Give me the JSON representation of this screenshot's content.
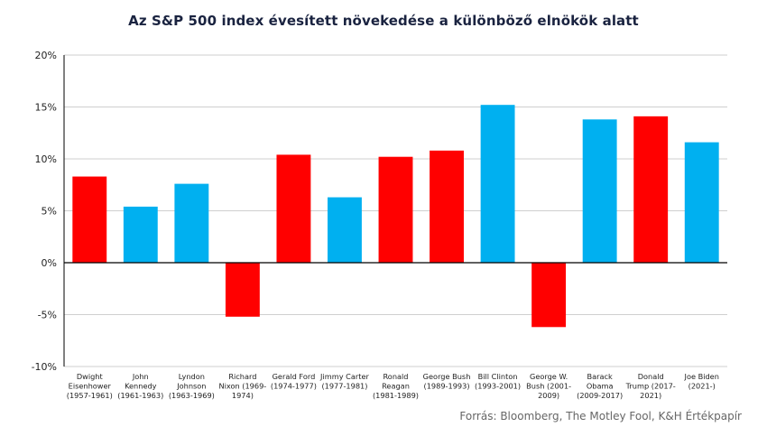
{
  "title": "Az S&P 500 index évesített növekedése a különböző elnökök alatt",
  "source": "Forrás: Bloomberg,  The Motley Fool, K&H Értékpapír",
  "colors": {
    "republican": "#ff0000",
    "democrat": "#00b0f0",
    "grid": "#cfcfcf",
    "axis": "#000000"
  },
  "chart_data": {
    "type": "bar",
    "title": "Az S&P 500 index évesített növekedése a különböző elnökök alatt",
    "xlabel": "",
    "ylabel": "",
    "ylim": [
      -10,
      20
    ],
    "yticks": [
      20,
      15,
      10,
      5,
      0,
      -5,
      -10
    ],
    "ytick_labels": [
      "20%",
      "15%",
      "10%",
      "5%",
      "0%",
      "-5%",
      "-10%"
    ],
    "grid": true,
    "legend": "none",
    "categories": [
      [
        "Dwight",
        "Eisenhower",
        "(1957-1961)"
      ],
      [
        "John",
        "Kennedy",
        "(1961-1963)"
      ],
      [
        "Lyndon",
        "Johnson",
        "(1963-1969)"
      ],
      [
        "Richard",
        "Nixon (1969-",
        "1974)"
      ],
      [
        "Gerald Ford",
        "(1974-1977)"
      ],
      [
        "Jimmy Carter",
        "(1977-1981)"
      ],
      [
        "Ronald",
        "Reagan",
        "(1981-1989)"
      ],
      [
        "George Bush",
        "(1989-1993)"
      ],
      [
        "Bill Clinton",
        "(1993-2001)"
      ],
      [
        "George W.",
        "Bush (2001-",
        "2009)"
      ],
      [
        "Barack",
        "Obama",
        "(2009-2017)"
      ],
      [
        "Donald",
        "Trump (2017-",
        "2021)"
      ],
      [
        "Joe Biden",
        "(2021-)"
      ]
    ],
    "values": [
      8.3,
      5.4,
      7.6,
      -5.2,
      10.4,
      6.3,
      10.2,
      10.8,
      15.2,
      -6.2,
      13.8,
      14.1,
      11.6
    ],
    "party": [
      "republican",
      "democrat",
      "democrat",
      "republican",
      "republican",
      "democrat",
      "republican",
      "republican",
      "democrat",
      "republican",
      "democrat",
      "republican",
      "democrat"
    ]
  }
}
